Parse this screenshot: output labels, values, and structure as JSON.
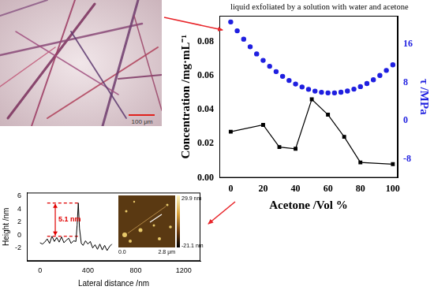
{
  "annotation": "liquid exfoliated by a solution with water and acetone",
  "photo": {
    "scale_bar": "100 μm"
  },
  "chart_data": [
    {
      "type": "line",
      "x_label": "Acetone /Vol %",
      "y_label": "Concentration /mg·mL⁻¹",
      "y2_label": "τ /MPa",
      "xlim": [
        -7,
        103
      ],
      "xticks": [
        0,
        20,
        40,
        60,
        80,
        100
      ],
      "ylim": [
        0,
        0.095
      ],
      "yticks": [
        {
          "value": 0,
          "label": "0.00"
        },
        0.02,
        0.04,
        0.06,
        0.08
      ],
      "y2lim": [
        -12,
        22
      ],
      "y2ticks": [
        -8,
        0,
        8,
        16
      ],
      "grid": false,
      "series": [
        {
          "color": "#000000",
          "marker": "square",
          "line_style": "solid",
          "x": [
            0,
            20,
            30,
            40,
            50,
            60,
            70,
            80,
            100
          ],
          "values": [
            0.027,
            0.031,
            0.018,
            0.017,
            0.046,
            0.037,
            0.024,
            0.009,
            0.008
          ]
        },
        {
          "color": "#1f1fe0",
          "marker": "circle",
          "line_style": "none",
          "axis": "y2",
          "x": [
            0,
            4,
            8,
            12,
            16,
            20,
            24,
            28,
            32,
            36,
            40,
            44,
            48,
            52,
            56,
            60,
            64,
            68,
            72,
            76,
            80,
            84,
            88,
            92,
            96,
            100
          ],
          "values": [
            20.7,
            18.84,
            17.1,
            15.49,
            14,
            12.64,
            11.4,
            10.28,
            9.29,
            8.42,
            7.68,
            7.06,
            6.56,
            6.19,
            5.94,
            5.82,
            5.82,
            5.95,
            6.21,
            6.6,
            7.13,
            7.78,
            8.56,
            9.48,
            10.53,
            11.71
          ]
        }
      ]
    },
    {
      "type": "line",
      "x_label": "Lateral distance /nm",
      "y_label": "Height /nm",
      "xlim": [
        -110,
        1340
      ],
      "xticks": [
        0,
        400,
        800,
        1200
      ],
      "ylim": [
        -4,
        6.5
      ],
      "yticks": [
        -2,
        0,
        2,
        4,
        6
      ],
      "grid": false,
      "series": [
        {
          "color": "#000000",
          "marker": "none",
          "line_style": "solid",
          "x": [
            0,
            20,
            40,
            60,
            80,
            100,
            120,
            140,
            160,
            180,
            200,
            220,
            240,
            260,
            280,
            300,
            310,
            320,
            330,
            345,
            360,
            380,
            400,
            420,
            440,
            460,
            480,
            500,
            520,
            540,
            560,
            580,
            600
          ],
          "values": [
            -1.2,
            -1.4,
            -1.1,
            -0.6,
            -1.3,
            -0.2,
            -1.0,
            -0.4,
            -1.1,
            -0.3,
            -1.2,
            -0.8,
            -0.5,
            -1.3,
            -0.9,
            -1.0,
            1.5,
            4.9,
            1.0,
            -1.3,
            -1.6,
            -0.9,
            -1.4,
            -1.0,
            -2.0,
            -1.5,
            -2.2,
            -1.4,
            -2.3,
            -1.6,
            -2.4,
            -1.8,
            -1.4
          ]
        }
      ],
      "reference_lines": [
        {
          "value": 4.9,
          "x": [
            60,
            330
          ],
          "color": "#e00000",
          "line_style": "dashed"
        },
        {
          "value": -0.2,
          "x": [
            60,
            330
          ],
          "color": "#e00000",
          "line_style": "dashed"
        }
      ],
      "annotation": "5.1 nm",
      "inset_image": {
        "xlim": [
          0,
          2.8
        ],
        "xticks": [
          {
            "value": 0,
            "label": "0.0"
          },
          {
            "value": 2.8,
            "label": "2.8 μm"
          }
        ],
        "colorbar": {
          "range": [
            -21.1,
            29.9
          ],
          "ticks": [
            {
              "value": 29.9,
              "label": "29.9 nm"
            },
            {
              "value": -21.1,
              "label": "-21.1 nm"
            }
          ]
        }
      }
    }
  ]
}
